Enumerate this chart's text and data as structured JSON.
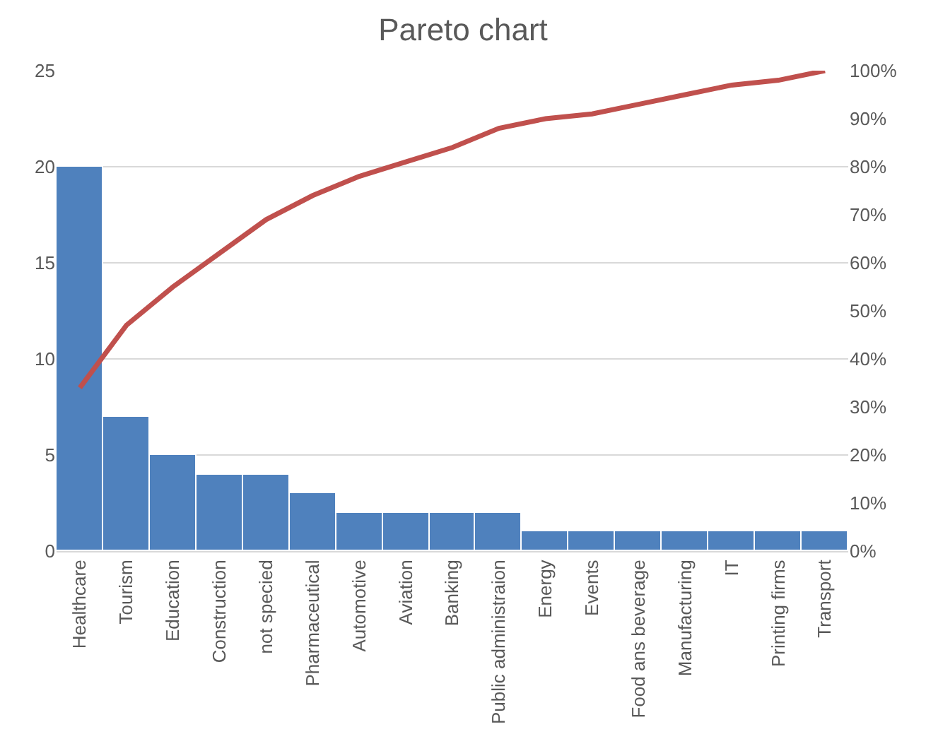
{
  "chart_data": {
    "type": "bar",
    "title": "Pareto chart",
    "categories": [
      "Healthcare",
      "Tourism",
      "Education",
      "Construction",
      "not specied",
      "Pharmaceutical",
      "Automotive",
      "Aviation",
      "Banking",
      "Public administraion",
      "Energy",
      "Events",
      "Food ans beverage",
      "Manufacturing",
      "IT",
      "Printing firms",
      "Transport"
    ],
    "series": [
      {
        "color": "#4f81bd",
        "values": [
          20,
          7,
          5,
          4,
          4,
          3,
          2,
          2,
          2,
          2,
          1,
          1,
          1,
          1,
          1,
          1,
          1
        ]
      },
      {
        "type": "line",
        "axis": "y2",
        "color": "#c0504d",
        "values": [
          34,
          47,
          55,
          62,
          69,
          74,
          78,
          81,
          84,
          88,
          90,
          91,
          93,
          95,
          97,
          98,
          100
        ]
      }
    ],
    "ylim": [
      0,
      25
    ],
    "yticks": [
      0,
      5,
      10,
      15,
      20,
      25
    ],
    "y2lim": [
      0,
      100
    ],
    "y2ticks": [
      {
        "value": 0,
        "label": "0%"
      },
      {
        "value": 10,
        "label": "10%"
      },
      {
        "value": 20,
        "label": "20%"
      },
      {
        "value": 30,
        "label": "30%"
      },
      {
        "value": 40,
        "label": "40%"
      },
      {
        "value": 50,
        "label": "50%"
      },
      {
        "value": 60,
        "label": "60%"
      },
      {
        "value": 70,
        "label": "70%"
      },
      {
        "value": 80,
        "label": "80%"
      },
      {
        "value": 90,
        "label": "90%"
      },
      {
        "value": 100,
        "label": "100%"
      }
    ],
    "grid": "y",
    "marker": "none",
    "line_style": "solid"
  }
}
